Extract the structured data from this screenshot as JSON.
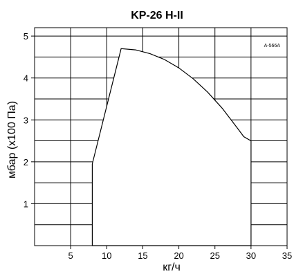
{
  "chart_data": {
    "type": "area",
    "title": "KP-26 H-II",
    "xlabel": "кг/ч",
    "ylabel": "мбар (x100 Па)",
    "xlim": [
      0,
      35
    ],
    "ylim": [
      0,
      5.2
    ],
    "x_ticks": [
      5,
      10,
      15,
      20,
      25,
      30,
      35
    ],
    "y_ticks": [
      1,
      2,
      3,
      4,
      5
    ],
    "grid": true,
    "annotation": "A-566A",
    "series": [
      {
        "x": [
          8,
          8,
          12,
          14,
          16,
          18,
          20,
          22,
          24,
          26,
          28,
          29,
          30,
          30
        ],
        "y": [
          0,
          1.95,
          4.7,
          4.67,
          4.58,
          4.44,
          4.24,
          3.98,
          3.66,
          3.28,
          2.83,
          2.6,
          2.5,
          0
        ]
      }
    ]
  }
}
